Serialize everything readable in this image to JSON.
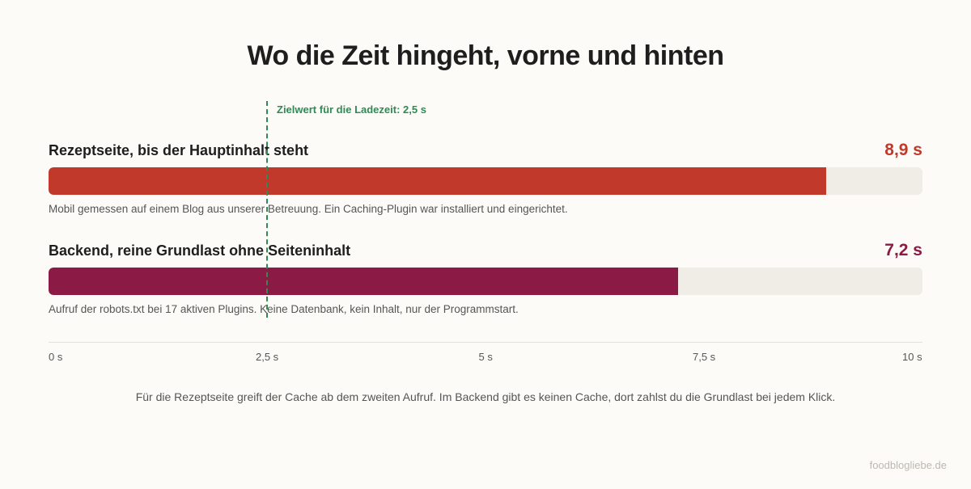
{
  "chart_data": {
    "type": "bar",
    "orientation": "horizontal",
    "title": "Wo die Zeit hingeht, vorne und hinten",
    "xlim": [
      0,
      10
    ],
    "unit": "s",
    "bars": [
      {
        "label": "Rezeptseite, bis der Hauptinhalt steht",
        "value": 8.9,
        "value_label": "8,9 s",
        "color": "#c0392b",
        "note": "Mobil gemessen auf einem Blog aus unserer Betreuung. Ein Caching-Plugin war installiert und eingerichtet."
      },
      {
        "label": "Backend, reine Grundlast ohne Seiteninhalt",
        "value": 7.2,
        "value_label": "7,2 s",
        "color": "#8b1a45",
        "note": "Aufruf der robots.txt bei 17 aktiven Plugins. Keine Datenbank, kein Inhalt, nur der Programmstart."
      }
    ],
    "reference_line": {
      "value": 2.5,
      "label": "Zielwert für die Ladezeit: 2,5 s",
      "color": "#2f8a55"
    },
    "ticks": [
      {
        "value": 0,
        "label": "0 s"
      },
      {
        "value": 2.5,
        "label": "2,5 s"
      },
      {
        "value": 5,
        "label": "5 s"
      },
      {
        "value": 7.5,
        "label": "7,5 s"
      },
      {
        "value": 10,
        "label": "10 s"
      }
    ]
  },
  "footnote": "Für die Rezeptseite greift der Cache ab dem zweiten Aufruf. Im Backend gibt es keinen Cache, dort zahlst du die Grundlast bei jedem Klick.",
  "credit": "foodblogliebe.de"
}
